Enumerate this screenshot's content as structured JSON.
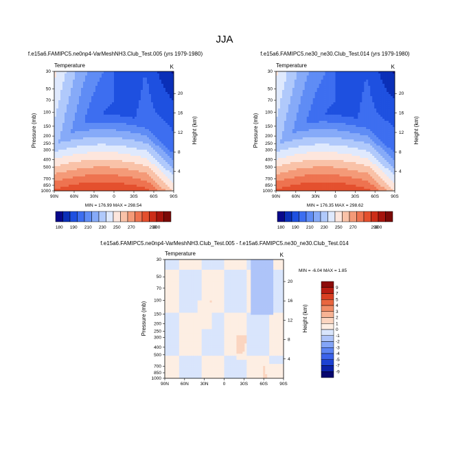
{
  "page": {
    "title": "JJA"
  },
  "palette": {
    "temp": [
      "#08088a",
      "#0a2fb8",
      "#1e50e0",
      "#3d6ef0",
      "#5f8cf5",
      "#86aaf8",
      "#b0c9fb",
      "#dfe9fd",
      "#fde6dd",
      "#f9c2a8",
      "#f49a78",
      "#ee7350",
      "#e4502e",
      "#cc2d18",
      "#a5140d",
      "#7a0a08"
    ],
    "diff": [
      "#06066e",
      "#0b22a8",
      "#1c42d2",
      "#3b63eb",
      "#5d85f3",
      "#84a5f7",
      "#aec4f9",
      "#d9e5fc",
      "#fdeee3",
      "#fbd5c0",
      "#f7b394",
      "#f18d67",
      "#e9663f",
      "#d93f22",
      "#b81d12",
      "#8c0b0a"
    ]
  },
  "chart_data": [
    {
      "id": "left",
      "type": "heatmap",
      "title": "f.e15a6.FAMIPC5.ne0np4-VarMeshNH3.Club_Test.005 (yrs 1979-1980)",
      "variable": "Temperature",
      "units": "K",
      "ylabel": "Pressure (mb)",
      "ylabel_right": "Height (km)",
      "xticks": [
        "90N",
        "60N",
        "30N",
        "0",
        "30S",
        "60S",
        "90S"
      ],
      "yticks": [
        "30",
        "50",
        "70",
        "100",
        "150",
        "200",
        "250",
        "300",
        "400",
        "500",
        "700",
        "850",
        "1000"
      ],
      "ylevels": [
        30,
        50,
        70,
        100,
        150,
        200,
        250,
        300,
        400,
        500,
        700,
        850,
        1000
      ],
      "yticks_right": [
        "20",
        "16",
        "12",
        "8",
        "4"
      ],
      "min_max": "MIN = 176.99  MAX = 298.54",
      "levels": [
        180,
        190,
        200,
        210,
        220,
        230,
        240,
        250,
        260,
        270,
        280,
        290,
        300
      ],
      "colorbar_labels": [
        "180",
        "190",
        "210",
        "230",
        "250",
        "270",
        "290",
        "300"
      ]
    },
    {
      "id": "right",
      "type": "heatmap",
      "title": "f.e15a6.FAMIPC5.ne30_ne30.Club_Test.014 (yrs 1979-1980)",
      "variable": "Temperature",
      "units": "K",
      "ylabel": "Pressure (mb)",
      "ylabel_right": "Height (km)",
      "xticks": [
        "90N",
        "60N",
        "30N",
        "0",
        "30S",
        "60S",
        "90S"
      ],
      "yticks": [
        "30",
        "50",
        "70",
        "100",
        "150",
        "200",
        "250",
        "300",
        "400",
        "500",
        "700",
        "850",
        "1000"
      ],
      "ylevels": [
        30,
        50,
        70,
        100,
        150,
        200,
        250,
        300,
        400,
        500,
        700,
        850,
        1000
      ],
      "yticks_right": [
        "20",
        "16",
        "12",
        "8",
        "4"
      ],
      "min_max": "MIN = 176.35  MAX = 298.62",
      "levels": [
        180,
        190,
        200,
        210,
        220,
        230,
        240,
        250,
        260,
        270,
        280,
        290,
        300
      ],
      "colorbar_labels": [
        "180",
        "190",
        "210",
        "230",
        "250",
        "270",
        "290",
        "300"
      ]
    },
    {
      "id": "diff",
      "type": "heatmap",
      "title": "f.e15a6.FAMIPC5.ne0np4-VarMeshNH3.Club_Test.005 - f.e15a6.FAMIPC5.ne30_ne30.Club_Test.014",
      "variable": "Temperature",
      "units": "K",
      "ylabel": "Pressure (mb)",
      "ylabel_right": "Height (km)",
      "xticks": [
        "90N",
        "60N",
        "30N",
        "0",
        "30S",
        "60S",
        "90S"
      ],
      "yticks": [
        "30",
        "50",
        "70",
        "100",
        "150",
        "200",
        "250",
        "300",
        "400",
        "500",
        "700",
        "850",
        "1000"
      ],
      "ylevels": [
        30,
        50,
        70,
        100,
        150,
        200,
        250,
        300,
        400,
        500,
        700,
        850,
        1000
      ],
      "yticks_right": [
        "20",
        "16",
        "12",
        "8",
        "4"
      ],
      "min_max": "MIN =  -6.04  MAX =   1.85",
      "levels": [
        -9,
        -7,
        -5,
        -4,
        -3,
        -2,
        -1,
        0,
        1,
        2,
        3,
        4,
        5,
        7,
        9
      ],
      "colorbar_labels": [
        "9",
        "7",
        "5",
        "4",
        "3",
        "2",
        "1",
        "0",
        "-1",
        "-2",
        "-3",
        "-4",
        "-5",
        "-7",
        "-9"
      ]
    }
  ]
}
